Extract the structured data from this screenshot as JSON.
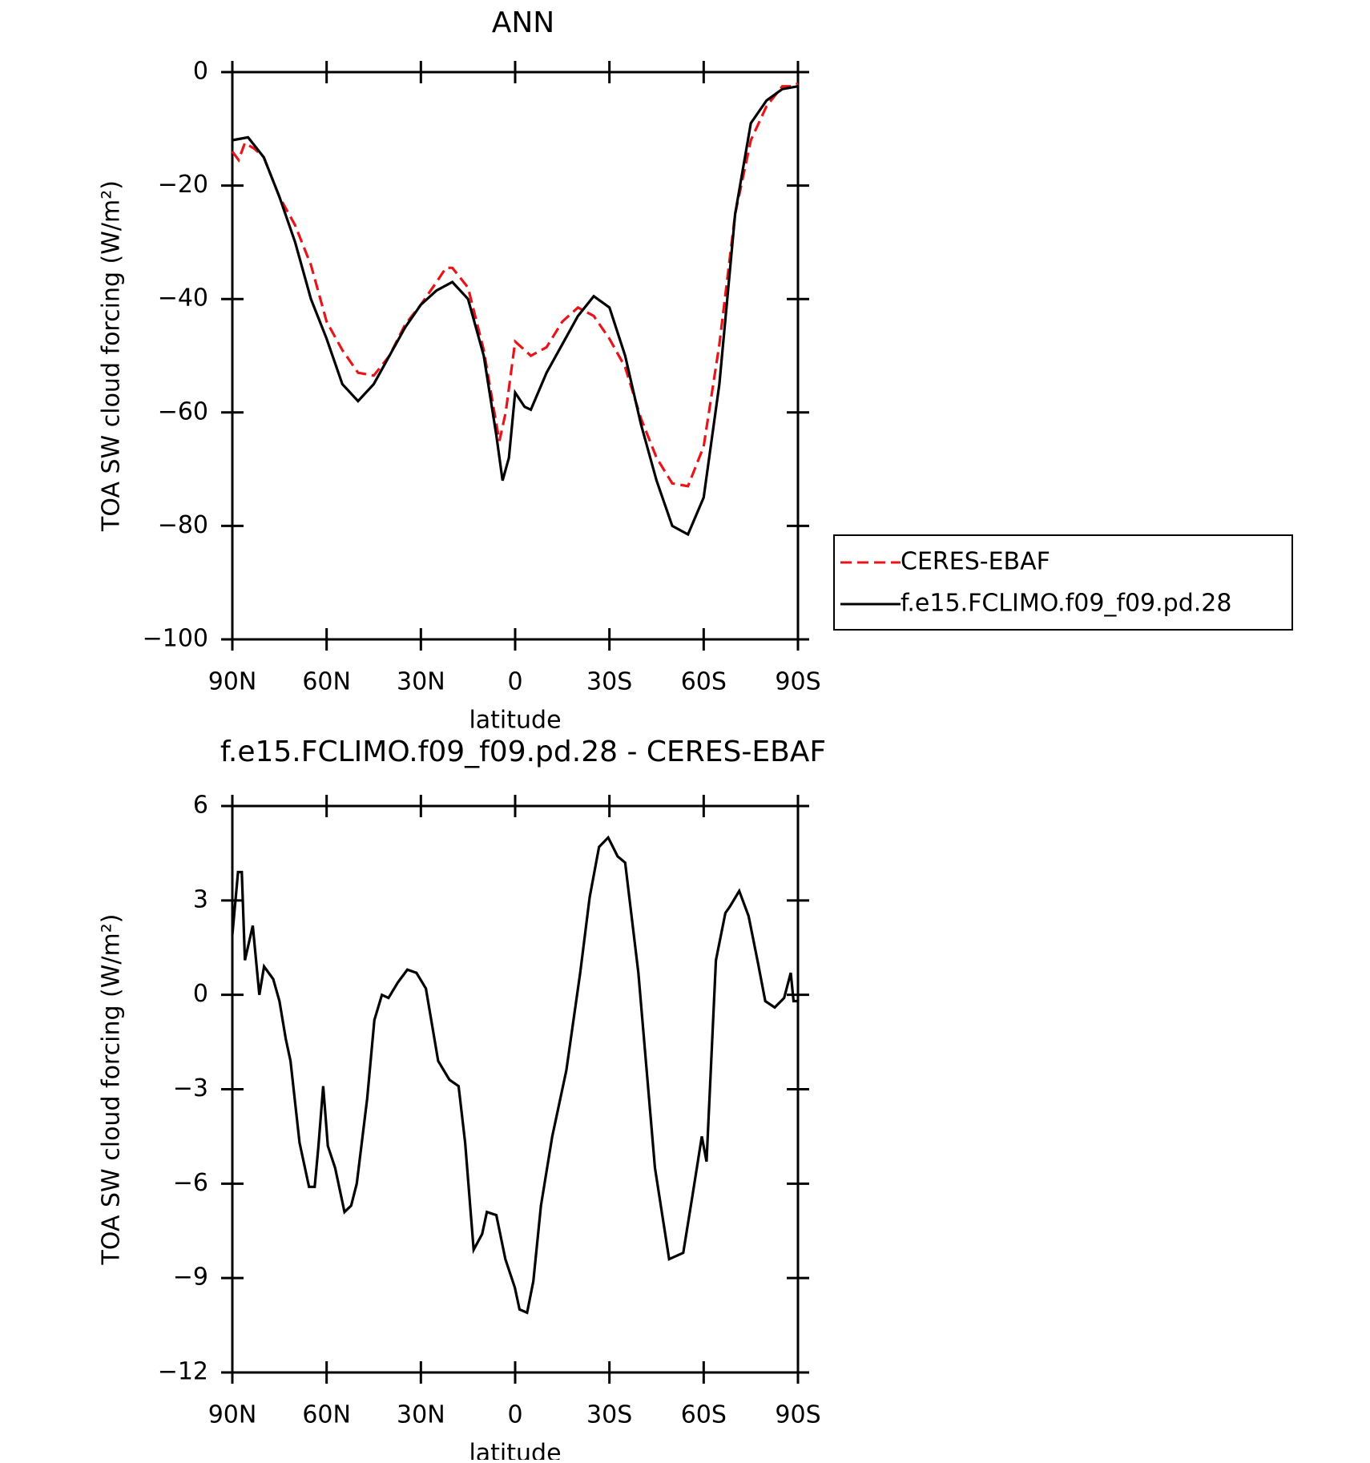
{
  "chart_data": [
    {
      "type": "line",
      "title": "ANN",
      "xlabel": "latitude",
      "ylabel": "TOA SW cloud forcing (W/m²)",
      "xlim": [
        90,
        -90
      ],
      "ylim": [
        -100,
        0
      ],
      "xticks": [
        {
          "value": 90,
          "label": "90N"
        },
        {
          "value": 60,
          "label": "60N"
        },
        {
          "value": 30,
          "label": "30N"
        },
        0,
        {
          "value": -30,
          "label": "30S"
        },
        {
          "value": -60,
          "label": "60S"
        },
        {
          "value": -90,
          "label": "90S"
        }
      ],
      "yticks": [
        {
          "value": -100,
          "label": "−100"
        },
        {
          "value": -80,
          "label": "−80"
        },
        {
          "value": -60,
          "label": "−60"
        },
        {
          "value": -40,
          "label": "−40"
        },
        {
          "value": -20,
          "label": "−20"
        },
        0
      ],
      "legend": "right",
      "series": [
        {
          "name": "CERES-EBAF",
          "color": "#e8141a",
          "dash": true,
          "x": [
            90,
            88,
            86,
            83,
            80,
            75,
            70,
            65,
            60,
            55,
            50,
            45,
            40,
            35,
            30,
            25,
            22,
            20,
            15,
            10,
            6,
            5,
            3,
            0,
            -3,
            -5,
            -10,
            -15,
            -20,
            -25,
            -30,
            -35,
            -40,
            -45,
            -50,
            -55,
            -60,
            -65,
            -70,
            -75,
            -80,
            -85,
            -88,
            -90
          ],
          "values": [
            -14,
            -15.5,
            -12.5,
            -13.5,
            -15,
            -22,
            -27,
            -34,
            -44,
            -49,
            -53,
            -53.5,
            -50,
            -44.5,
            -41,
            -37,
            -34.5,
            -34.5,
            -38,
            -49,
            -62,
            -65,
            -60,
            -47.5,
            -49,
            -50,
            -48.5,
            -44,
            -41.5,
            -43,
            -47,
            -52,
            -61,
            -68,
            -72.5,
            -73,
            -66,
            -48,
            -25,
            -12,
            -6,
            -2.5,
            -2.5,
            -2
          ]
        },
        {
          "name": "f.e15.FCLIMO.f09_f09.pd.28",
          "color": "#000000",
          "dash": false,
          "x": [
            90,
            85,
            80,
            75,
            70,
            65,
            60,
            55,
            50,
            45,
            40,
            35,
            30,
            25,
            20,
            15,
            10,
            6,
            4,
            2,
            0,
            -3,
            -5,
            -10,
            -15,
            -20,
            -25,
            -30,
            -35,
            -40,
            -45,
            -50,
            -55,
            -60,
            -65,
            -70,
            -75,
            -80,
            -85,
            -90
          ],
          "values": [
            -12,
            -11.5,
            -15,
            -22,
            -30,
            -40,
            -47,
            -55,
            -58,
            -55,
            -50,
            -45,
            -41,
            -38.5,
            -37,
            -40,
            -50,
            -64,
            -72,
            -68,
            -56.5,
            -59,
            -59.5,
            -53,
            -48,
            -43,
            -39.5,
            -41.5,
            -50,
            -62,
            -72,
            -80,
            -81.5,
            -75,
            -55,
            -25,
            -9,
            -5,
            -3,
            -2.5
          ]
        }
      ]
    },
    {
      "type": "line",
      "title": "f.e15.FCLIMO.f09_f09.pd.28 - CERES-EBAF",
      "xlabel": "latitude",
      "ylabel": "TOA SW cloud forcing (W/m²)",
      "xlim": [
        90,
        -90
      ],
      "ylim": [
        -12,
        6
      ],
      "xticks": [
        {
          "value": 90,
          "label": "90N"
        },
        {
          "value": 60,
          "label": "60N"
        },
        {
          "value": 30,
          "label": "30N"
        },
        0,
        {
          "value": -30,
          "label": "30S"
        },
        {
          "value": -60,
          "label": "60S"
        },
        {
          "value": -90,
          "label": "90S"
        }
      ],
      "yticks": [
        {
          "value": -12,
          "label": "−12"
        },
        {
          "value": -9,
          "label": "−9"
        },
        {
          "value": -6,
          "label": "−6"
        },
        {
          "value": -3,
          "label": "−3"
        },
        0,
        3,
        6
      ],
      "series": [
        {
          "color": "#000000",
          "dash": false,
          "x": [
            90,
            88.2,
            87,
            86,
            83.5,
            81.4,
            79.9,
            77,
            75,
            73,
            71.5,
            68.6,
            65.6,
            63.8,
            62.6,
            61.1,
            59.6,
            57.3,
            54.3,
            52.2,
            50.4,
            47.1,
            44.8,
            42.4,
            40.3,
            37.3,
            34.3,
            31.4,
            28.4,
            24.5,
            20.9,
            18,
            15.9,
            13.2,
            10.5,
            9,
            6,
            3.1,
            0.1,
            -1.4,
            -3.8,
            -5.8,
            -8.2,
            -11.8,
            -16.3,
            -20.7,
            -23.7,
            -26.7,
            -29.6,
            -32.6,
            -35,
            -39.2,
            -44.5,
            -49,
            -53.5,
            -56.4,
            -59.4,
            -60.9,
            -63.9,
            -66.9,
            -68.3,
            -71.3,
            -74.3,
            -77.3,
            -79.6,
            -82.6,
            -85.6,
            -87.7,
            -88.6,
            -90
          ],
          "values": [
            1.9,
            3.9,
            3.9,
            1.1,
            2.2,
            0,
            0.9,
            0.5,
            -0.2,
            -1.4,
            -2.1,
            -4.7,
            -6.1,
            -6.1,
            -4.8,
            -2.9,
            -4.8,
            -5.5,
            -6.9,
            -6.7,
            -6,
            -3.3,
            -0.8,
            0,
            -0.1,
            0.4,
            0.8,
            0.7,
            0.2,
            -2.1,
            -2.7,
            -2.9,
            -4.7,
            -8.1,
            -7.6,
            -6.9,
            -7,
            -8.4,
            -9.3,
            -10,
            -10.1,
            -9.1,
            -6.7,
            -4.5,
            -2.4,
            0.7,
            3.1,
            4.7,
            5,
            4.4,
            4.2,
            0.7,
            -5.5,
            -8.4,
            -8.2,
            -6.4,
            -4.5,
            -5.3,
            1.1,
            2.6,
            2.8,
            3.3,
            2.5,
            1,
            -0.2,
            -0.4,
            -0.1,
            0.7,
            -0.2,
            -0.2
          ]
        }
      ]
    }
  ]
}
